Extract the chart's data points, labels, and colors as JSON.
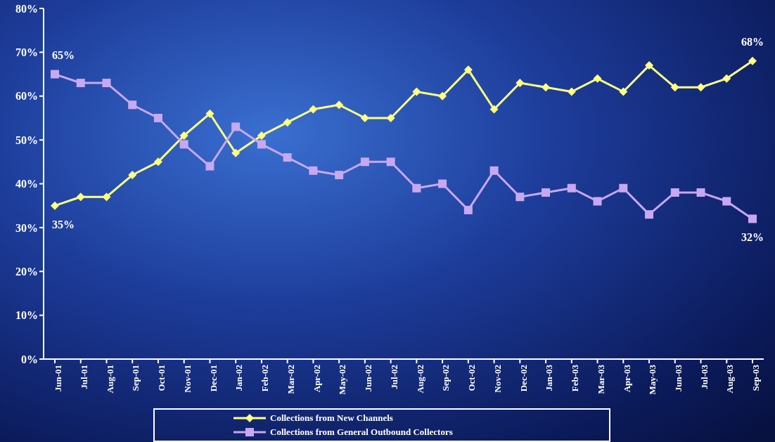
{
  "chart_data": {
    "type": "line",
    "categories": [
      "Jun-01",
      "Jul-01",
      "Aug-01",
      "Sep-01",
      "Oct-01",
      "Nov-01",
      "Dec-01",
      "Jan-02",
      "Feb-02",
      "Mar-02",
      "Apr-02",
      "May-02",
      "Jun-02",
      "Jul-02",
      "Aug-02",
      "Sep-02",
      "Oct-02",
      "Nov-02",
      "Dec-02",
      "Jan-03",
      "Feb-03",
      "Mar-03",
      "Apr-03",
      "May-03",
      "Jun-03",
      "Jul-03",
      "Aug-03",
      "Sep-03"
    ],
    "series": [
      {
        "name": "Collections from New Channels",
        "color": "#ffff80",
        "marker": "diamond",
        "values": [
          35,
          37,
          37,
          42,
          45,
          51,
          56,
          47,
          51,
          54,
          57,
          58,
          55,
          55,
          61,
          60,
          66,
          57,
          63,
          62,
          61,
          64,
          61,
          67,
          62,
          62,
          64,
          68
        ],
        "value_labels": [
          "35%",
          null,
          null,
          null,
          null,
          null,
          null,
          null,
          null,
          null,
          null,
          null,
          null,
          null,
          null,
          null,
          null,
          null,
          null,
          null,
          null,
          null,
          null,
          null,
          null,
          null,
          null,
          "68%"
        ]
      },
      {
        "name": "Collections from General Outbound Collectors",
        "color": "#c8a8f0",
        "marker": "square",
        "values": [
          65,
          63,
          63,
          58,
          55,
          49,
          44,
          53,
          49,
          46,
          43,
          42,
          45,
          45,
          39,
          40,
          34,
          43,
          37,
          38,
          39,
          36,
          39,
          33,
          38,
          38,
          36,
          32
        ],
        "value_labels": [
          "65%",
          null,
          null,
          null,
          null,
          null,
          null,
          null,
          null,
          null,
          null,
          null,
          null,
          null,
          null,
          null,
          null,
          null,
          null,
          null,
          null,
          null,
          null,
          null,
          null,
          null,
          null,
          "32%"
        ]
      }
    ],
    "ylim": [
      0,
      80
    ],
    "yticks": [
      {
        "value": 0,
        "label": "0%"
      },
      {
        "value": 10,
        "label": "10%"
      },
      {
        "value": 20,
        "label": "20%"
      },
      {
        "value": 30,
        "label": "30%"
      },
      {
        "value": 40,
        "label": "40%"
      },
      {
        "value": 50,
        "label": "50%"
      },
      {
        "value": 60,
        "label": "60%"
      },
      {
        "value": 70,
        "label": "70%"
      },
      {
        "value": 80,
        "label": "80%"
      }
    ],
    "legend": "bottom",
    "line_style": "solid"
  }
}
